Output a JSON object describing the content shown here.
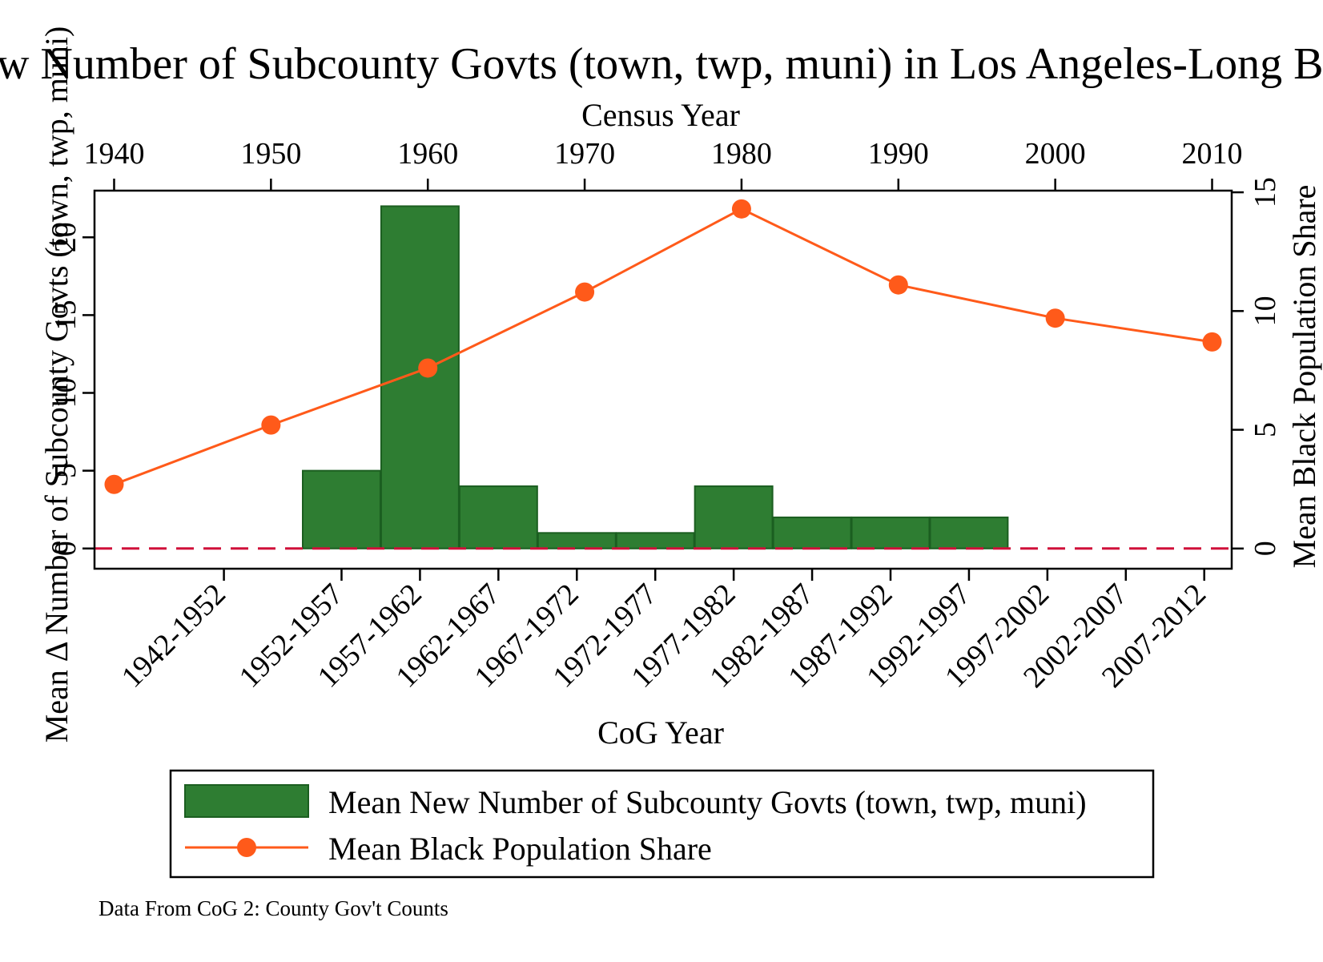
{
  "chart_data": {
    "type": "bar",
    "title": "Mean New Number of Subcounty Govts (town, twp, muni) in Los Angeles-Long Beach, CA",
    "note": "Data From CoG 2: County Gov't Counts",
    "xlabel": "CoG Year",
    "x2label": "Census Year",
    "ylabel": "Mean Δ Number of Subcounty Govts (town, twp, muni)",
    "y2label": "Mean Black Population Share",
    "categories": [
      "1942-1952",
      "1952-1957",
      "1957-1962",
      "1962-1967",
      "1967-1972",
      "1972-1977",
      "1977-1982",
      "1982-1987",
      "1987-1992",
      "1992-1997",
      "1997-2002",
      "2002-2007",
      "2007-2012"
    ],
    "category_midyears": [
      1947,
      1954.5,
      1959.5,
      1964.5,
      1969.5,
      1974.5,
      1979.5,
      1984.5,
      1989.5,
      1994.5,
      1999.5,
      2004.5,
      2009.5
    ],
    "bar_series": {
      "name": "Mean New Number of Subcounty Govts (town, twp, muni)",
      "color": "#2e7d32",
      "edge_color": "#1b5e20",
      "values": [
        null,
        5,
        22,
        4,
        1,
        1,
        4,
        2,
        2,
        2,
        null,
        null,
        null
      ]
    },
    "line_series": {
      "name": "Mean Black Population Share",
      "color": "#ff5a1a",
      "x": [
        1940,
        1950,
        1960,
        1970,
        1980,
        1990,
        2000,
        2010
      ],
      "values": [
        2.7,
        5.2,
        7.6,
        10.8,
        14.3,
        11.1,
        9.7,
        8.7
      ]
    },
    "x_range": [
      1938.75,
      2011.25
    ],
    "x2_ticks": [
      1940,
      1950,
      1960,
      1970,
      1980,
      1990,
      2000,
      2010
    ],
    "ylim": [
      -1.3,
      23
    ],
    "y_ticks": [
      0,
      5,
      10,
      15,
      20
    ],
    "y2lim": [
      -0.85,
      15.07
    ],
    "y2_ticks": [
      0,
      5,
      10,
      15
    ],
    "reference_line": {
      "y": 0,
      "color": "#d0103a",
      "style": "dashed"
    },
    "legend": {
      "position": "bottom",
      "boxed": true
    },
    "grid": false
  }
}
